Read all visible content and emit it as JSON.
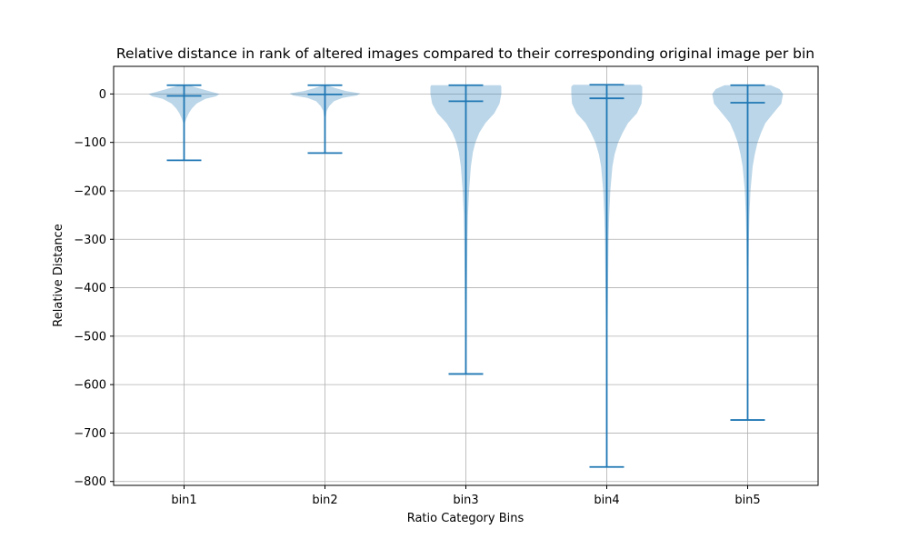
{
  "chart_data": {
    "type": "violin",
    "title": "Relative distance in rank of altered images compared to their corresponding original image per bin",
    "xlabel": "Ratio Category Bins",
    "ylabel": "Relative Distance",
    "ylim": [
      -808,
      57
    ],
    "yticks": [
      0,
      -100,
      -200,
      -300,
      -400,
      -500,
      -600,
      -700,
      -800
    ],
    "grid": true,
    "colors": {
      "line": "#1f77b4",
      "fill": "#1f77b4",
      "grid": "#b0b0b0"
    },
    "categories": [
      "bin1",
      "bin2",
      "bin3",
      "bin4",
      "bin5"
    ],
    "violins": [
      {
        "name": "bin1",
        "max": 18,
        "median": -4,
        "min": -137,
        "profile": [
          [
            18,
            0.12
          ],
          [
            10,
            0.5
          ],
          [
            5,
            0.75
          ],
          [
            0,
            1.0
          ],
          [
            -5,
            0.9
          ],
          [
            -10,
            0.6
          ],
          [
            -20,
            0.35
          ],
          [
            -30,
            0.22
          ],
          [
            -40,
            0.13
          ],
          [
            -50,
            0.07
          ],
          [
            -60,
            0.02
          ],
          [
            -70,
            0.01
          ],
          [
            -137,
            0.0
          ]
        ]
      },
      {
        "name": "bin2",
        "max": 18,
        "median": -1,
        "min": -122,
        "profile": [
          [
            18,
            0.05
          ],
          [
            12,
            0.3
          ],
          [
            6,
            0.6
          ],
          [
            1,
            1.0
          ],
          [
            -3,
            0.9
          ],
          [
            -8,
            0.5
          ],
          [
            -15,
            0.25
          ],
          [
            -25,
            0.12
          ],
          [
            -35,
            0.05
          ],
          [
            -50,
            0.02
          ],
          [
            -122,
            0.0
          ]
        ]
      },
      {
        "name": "bin3",
        "max": 18,
        "median": -15,
        "min": -578,
        "profile": [
          [
            18,
            0.98
          ],
          [
            15,
            1.0
          ],
          [
            0,
            1.0
          ],
          [
            -20,
            0.95
          ],
          [
            -40,
            0.8
          ],
          [
            -60,
            0.55
          ],
          [
            -80,
            0.38
          ],
          [
            -100,
            0.27
          ],
          [
            -120,
            0.2
          ],
          [
            -150,
            0.14
          ],
          [
            -200,
            0.09
          ],
          [
            -250,
            0.06
          ],
          [
            -300,
            0.045
          ],
          [
            -400,
            0.03
          ],
          [
            -500,
            0.02
          ],
          [
            -578,
            0.0
          ]
        ]
      },
      {
        "name": "bin4",
        "max": 19,
        "median": -9,
        "min": -770,
        "profile": [
          [
            19,
            0.95
          ],
          [
            15,
            1.0
          ],
          [
            0,
            1.0
          ],
          [
            -20,
            0.98
          ],
          [
            -40,
            0.85
          ],
          [
            -60,
            0.6
          ],
          [
            -80,
            0.45
          ],
          [
            -100,
            0.32
          ],
          [
            -125,
            0.22
          ],
          [
            -150,
            0.16
          ],
          [
            -200,
            0.1
          ],
          [
            -250,
            0.07
          ],
          [
            -300,
            0.05
          ],
          [
            -400,
            0.035
          ],
          [
            -500,
            0.02
          ],
          [
            -600,
            0.012
          ],
          [
            -700,
            0.006
          ],
          [
            -770,
            0.0
          ]
        ]
      },
      {
        "name": "bin5",
        "max": 18,
        "median": -18,
        "min": -673,
        "profile": [
          [
            18,
            0.65
          ],
          [
            10,
            0.9
          ],
          [
            0,
            1.0
          ],
          [
            -20,
            0.95
          ],
          [
            -40,
            0.72
          ],
          [
            -60,
            0.5
          ],
          [
            -80,
            0.38
          ],
          [
            -100,
            0.28
          ],
          [
            -125,
            0.2
          ],
          [
            -150,
            0.14
          ],
          [
            -200,
            0.08
          ],
          [
            -250,
            0.05
          ],
          [
            -300,
            0.035
          ],
          [
            -400,
            0.02
          ],
          [
            -500,
            0.012
          ],
          [
            -600,
            0.006
          ],
          [
            -673,
            0.0
          ]
        ]
      }
    ]
  }
}
